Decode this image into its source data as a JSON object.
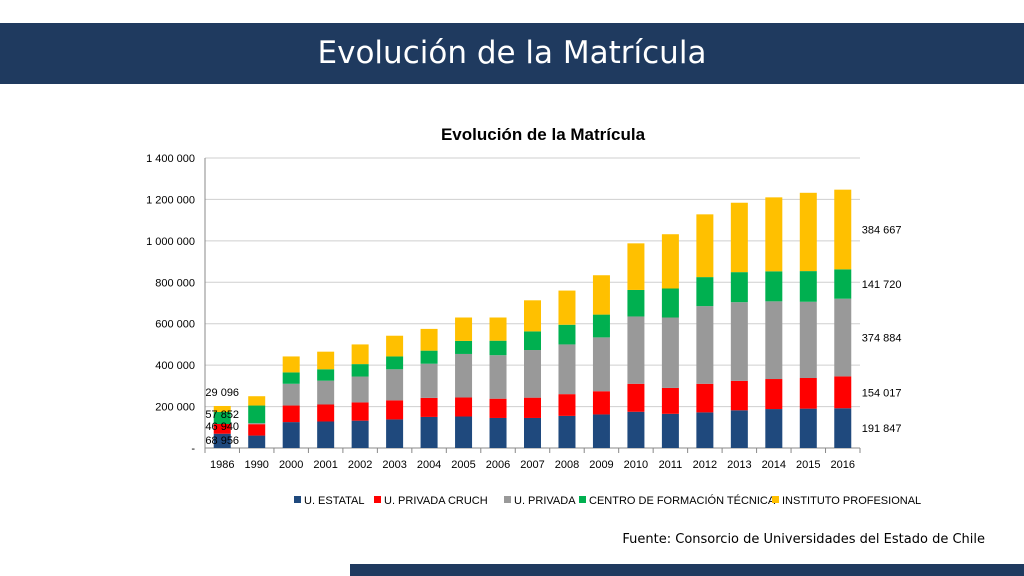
{
  "slide": {
    "title": "Evolución de la Matrícula",
    "source": "Fuente: Consorcio de Universidades del Estado de Chile"
  },
  "colors": {
    "banner": "#1f3a5f",
    "U. ESTATAL": "#1f497d",
    "U. PRIVADA CRUCH": "#ff0000",
    "U. PRIVADA": "#999999",
    "CENTRO DE FORMACIÓN TÉCNICA": "#00b050",
    "INSTITUTO PROFESIONAL": "#ffc000"
  },
  "chart_data": {
    "type": "bar",
    "stacked": true,
    "title": "Evolución de la Matrícula",
    "xlabel": "",
    "ylabel": "",
    "ylim": [
      0,
      1400000
    ],
    "yticks": [
      0,
      200000,
      400000,
      600000,
      800000,
      1000000,
      1200000,
      1400000
    ],
    "ytick_labels": [
      "-",
      "200 000",
      "400 000",
      "600 000",
      "800 000",
      "1 000 000",
      "1 200 000",
      "1 400 000"
    ],
    "grid": true,
    "legend_position": "bottom",
    "categories": [
      "1986",
      "1990",
      "2000",
      "2001",
      "2002",
      "2003",
      "2004",
      "2005",
      "2006",
      "2007",
      "2008",
      "2009",
      "2010",
      "2011",
      "2012",
      "2013",
      "2014",
      "2015",
      "2016"
    ],
    "series": [
      {
        "name": "U. ESTATAL",
        "color": "#1f497d",
        "values": [
          68956,
          60000,
          125000,
          128000,
          132000,
          138000,
          150000,
          152000,
          145000,
          145000,
          155000,
          162000,
          175000,
          165000,
          172000,
          182000,
          188000,
          190000,
          191847
        ]
      },
      {
        "name": "U. PRIVADA CRUCH",
        "color": "#ff0000",
        "values": [
          46940,
          55000,
          80000,
          82000,
          88000,
          92000,
          92000,
          92000,
          93000,
          98000,
          105000,
          112000,
          135000,
          125000,
          138000,
          142000,
          145000,
          148000,
          154017
        ]
      },
      {
        "name": "U. PRIVADA",
        "color": "#999999",
        "values": [
          0,
          5000,
          105000,
          115000,
          125000,
          150000,
          165000,
          210000,
          210000,
          230000,
          240000,
          260000,
          325000,
          340000,
          375000,
          380000,
          375000,
          368000,
          374884
        ]
      },
      {
        "name": "CENTRO DE FORMACIÓN TÉCNICA",
        "color": "#00b050",
        "values": [
          57852,
          85000,
          55000,
          55000,
          60000,
          62000,
          63000,
          63000,
          70000,
          90000,
          95000,
          110000,
          128000,
          140000,
          140000,
          145000,
          145000,
          148000,
          141720
        ]
      },
      {
        "name": "INSTITUTO PROFESIONAL",
        "color": "#ffc000",
        "values": [
          29096,
          45000,
          77000,
          85000,
          95000,
          100000,
          105000,
          113000,
          112000,
          150000,
          165000,
          190000,
          225000,
          262000,
          303000,
          335000,
          357000,
          378000,
          384667
        ]
      }
    ],
    "data_labels": [
      {
        "category": "1986",
        "series": "U. ESTATAL",
        "text": "68 956"
      },
      {
        "category": "1986",
        "series": "U. PRIVADA CRUCH",
        "text": "46 940"
      },
      {
        "category": "1986",
        "series": "CENTRO DE FORMACIÓN TÉCNICA",
        "text": "57 852"
      },
      {
        "category": "1986",
        "series": "INSTITUTO PROFESIONAL",
        "text": "29 096"
      },
      {
        "category": "2016",
        "series": "U. ESTATAL",
        "text": "191 847"
      },
      {
        "category": "2016",
        "series": "U. PRIVADA CRUCH",
        "text": "154 017"
      },
      {
        "category": "2016",
        "series": "U. PRIVADA",
        "text": "374 884"
      },
      {
        "category": "2016",
        "series": "CENTRO DE FORMACIÓN TÉCNICA",
        "text": "141 720"
      },
      {
        "category": "2016",
        "series": "INSTITUTO PROFESIONAL",
        "text": "384 667"
      }
    ]
  }
}
